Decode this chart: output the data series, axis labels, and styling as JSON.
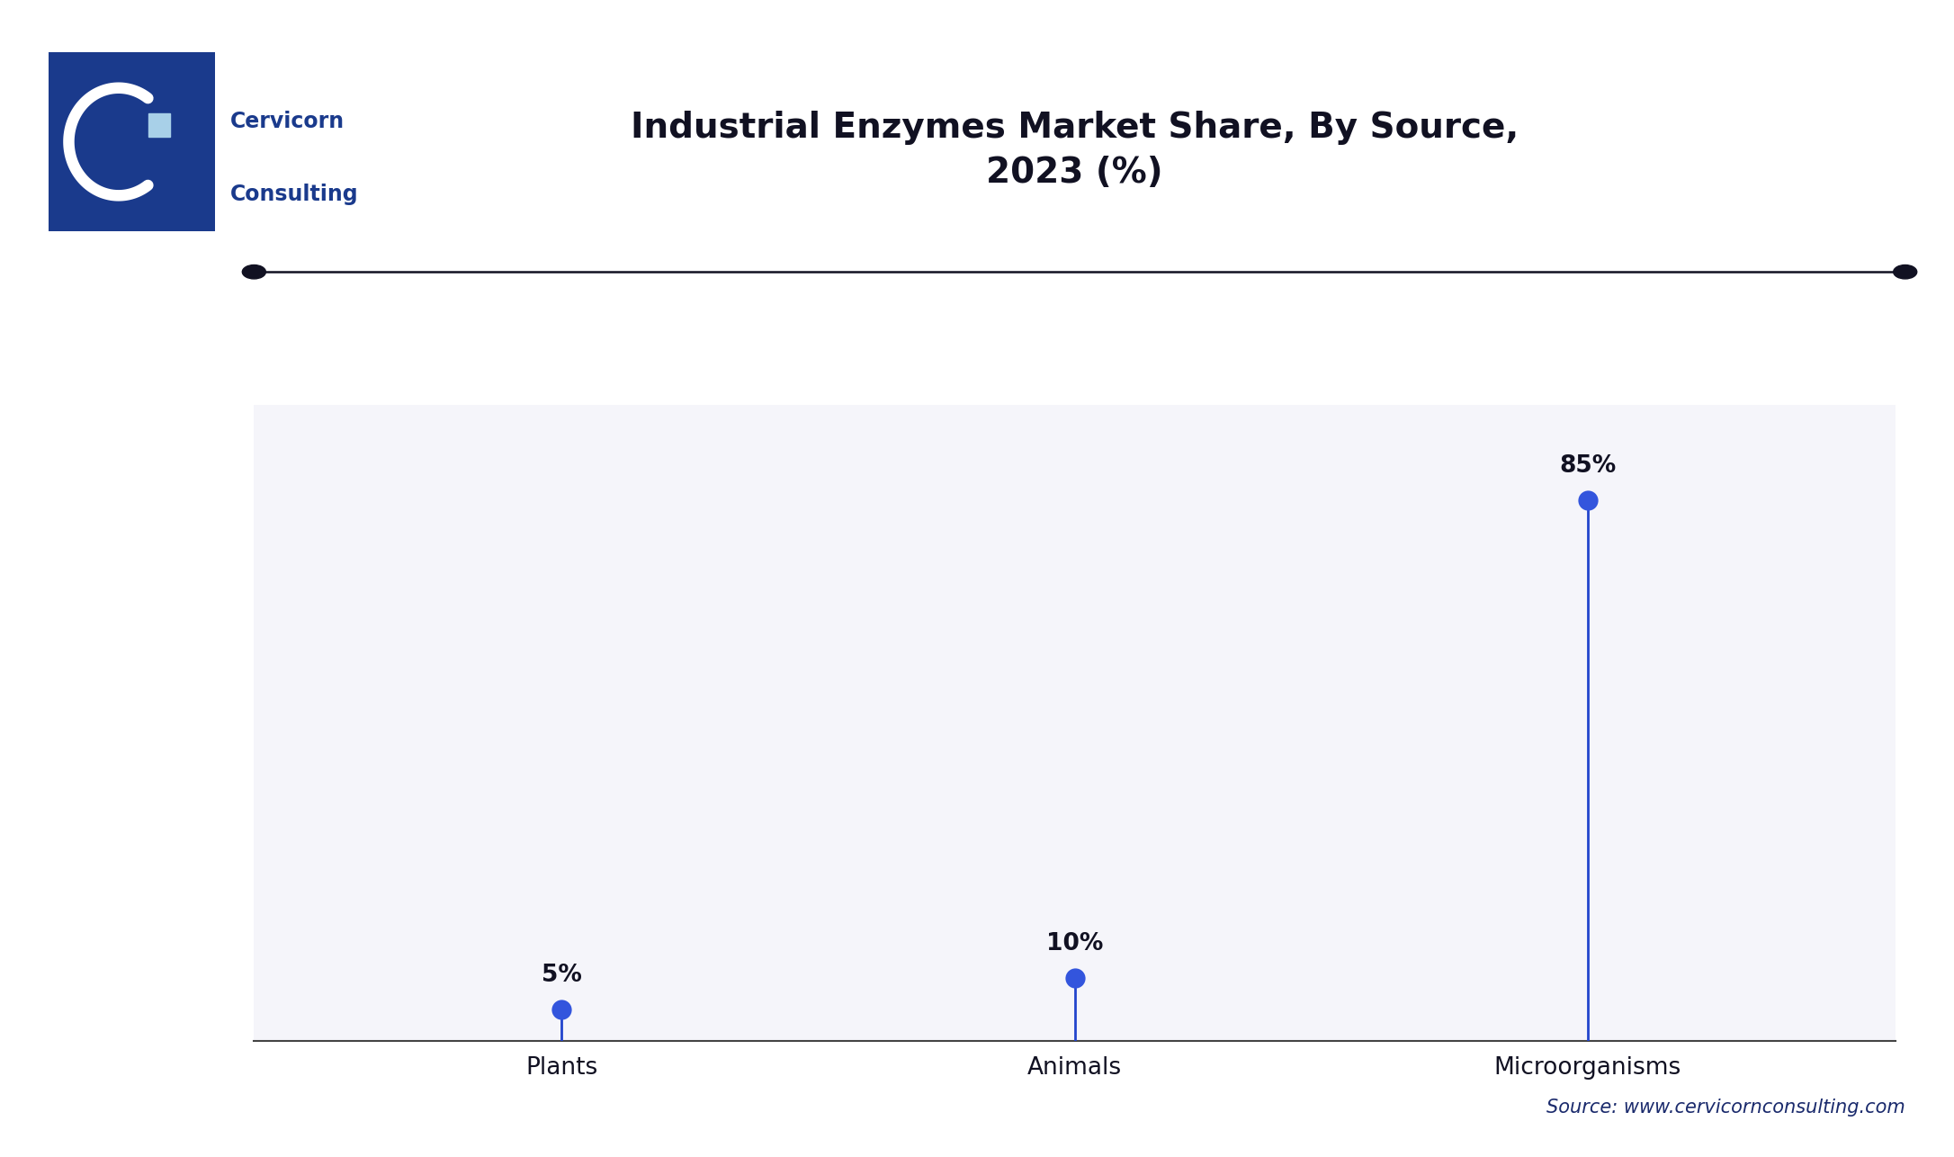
{
  "title": "Industrial Enzymes Market Share, By Source,\n2023 (%)",
  "categories": [
    "Plants",
    "Animals",
    "Microorganisms"
  ],
  "values": [
    5,
    10,
    85
  ],
  "labels": [
    "5%",
    "10%",
    "85%"
  ],
  "stem_color": "#2244cc",
  "dot_color": "#3355dd",
  "bg_color": "#ffffff",
  "plot_bg_color": "#f5f5fa",
  "grid_color": "#d8d8e8",
  "title_color": "#111122",
  "axis_label_color": "#111122",
  "source_text": "Source: www.cervicornconsulting.com",
  "source_color": "#1a2a6c",
  "title_fontsize": 28,
  "label_fontsize": 19,
  "category_fontsize": 19,
  "source_fontsize": 15,
  "ylim": [
    0,
    100
  ],
  "separator_line_color": "#111122",
  "logo_bg_color": "#1a3a8c",
  "logo_text_color": "#1a3a8c",
  "cervicorn_text": "Cervicorn",
  "consulting_text": "Consulting"
}
